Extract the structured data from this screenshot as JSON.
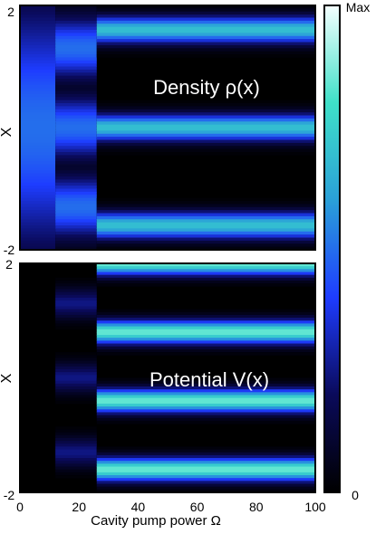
{
  "chart_data": [
    {
      "type": "heatmap",
      "title": "",
      "annotation": "Density ρ(x)",
      "xlabel": "",
      "ylabel": "X",
      "xlim": [
        0,
        100
      ],
      "ylim": [
        -2,
        2
      ],
      "y_ticks": [
        "2",
        "-2"
      ],
      "colorbar": {
        "min_label": "0",
        "max_label": "Max",
        "colors": [
          "#000000",
          "#0a0a5a",
          "#1e3cff",
          "#2aa0d8",
          "#3fe0c8",
          "#f4ffff"
        ]
      },
      "regimes": [
        {
          "x_range": [
            0,
            12
          ],
          "bands_y": [
            0
          ],
          "band_sigma": 1.4,
          "peak": 0.5
        },
        {
          "x_range": [
            12,
            26
          ],
          "bands_y": [
            1.3,
            -1.3,
            0
          ],
          "band_sigma": 0.35,
          "peak": 0.5
        },
        {
          "x_range": [
            26,
            100
          ],
          "bands_y": [
            1.6,
            0.0,
            -1.6
          ],
          "band_sigma": 0.15,
          "peak": 0.7
        }
      ]
    },
    {
      "type": "heatmap",
      "title": "",
      "annotation": "Potential V(x)",
      "xlabel": "Cavity pump power Ω",
      "ylabel": "X",
      "xlim": [
        0,
        100
      ],
      "ylim": [
        -2,
        2
      ],
      "x_ticks": [
        "0",
        "20",
        "40",
        "60",
        "80",
        "100"
      ],
      "y_ticks": [
        "2",
        "-2"
      ],
      "regimes": [
        {
          "x_range": [
            0,
            12
          ],
          "bands_y": [],
          "peak": 0
        },
        {
          "x_range": [
            12,
            26
          ],
          "bands_y": [
            1.3,
            0.0,
            -1.3
          ],
          "band_sigma": 0.18,
          "peak": 0.25
        },
        {
          "x_range": [
            26,
            100
          ],
          "bands_y": [
            2.0,
            0.8,
            -0.4,
            -1.6
          ],
          "band_sigma": 0.14,
          "peak": 0.85
        }
      ]
    }
  ]
}
